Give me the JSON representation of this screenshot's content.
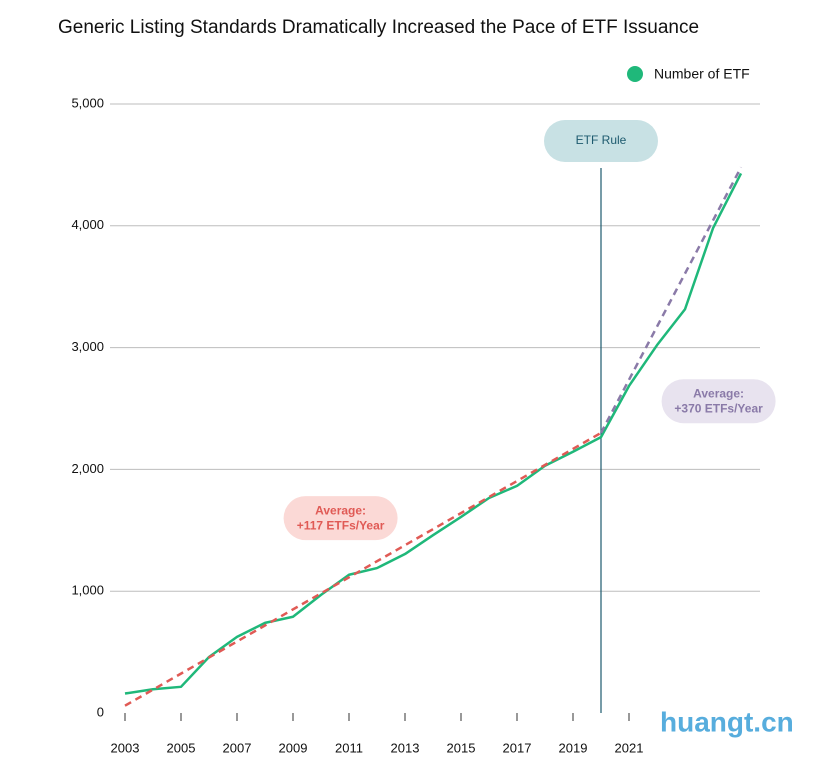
{
  "chart_data": {
    "type": "line",
    "title": "Generic Listing Standards Dramatically Increased the Pace of ETF Issuance",
    "x": [
      2003,
      2004,
      2005,
      2006,
      2007,
      2008,
      2009,
      2010,
      2011,
      2012,
      2013,
      2014,
      2015,
      2016,
      2017,
      2018,
      2019,
      2020,
      2021,
      2022,
      2023,
      2024,
      2025
    ],
    "series": [
      {
        "name": "Number of ETF",
        "color": "#1fb87a",
        "values": [
          160,
          195,
          215,
          460,
          625,
          740,
          790,
          970,
          1135,
          1190,
          1305,
          1460,
          1610,
          1765,
          1865,
          2030,
          2145,
          2265,
          2685,
          3020,
          3315,
          3980,
          4430
        ]
      }
    ],
    "trend_lines": [
      {
        "color": "#e05a55",
        "x": [
          2003,
          2020
        ],
        "values": [
          60,
          2300
        ]
      },
      {
        "color": "#8a7aa8",
        "x": [
          2020,
          2025
        ],
        "values": [
          2300,
          4480
        ]
      }
    ],
    "xlim": [
      2002,
      2026
    ],
    "xticks": [
      2003,
      2005,
      2007,
      2009,
      2011,
      2013,
      2015,
      2017,
      2019,
      2021
    ],
    "ylim": [
      0,
      5000
    ],
    "yticks": [
      0,
      {
        "value": 1000,
        "label": "1,000"
      },
      {
        "value": 2000,
        "label": "2,000"
      },
      {
        "value": 3000,
        "label": "3,000"
      },
      {
        "value": 4000,
        "label": "4,000"
      },
      {
        "value": 5000,
        "label": "5,000"
      }
    ],
    "grid": true,
    "legend": "top-right",
    "rule_line": {
      "x": 2020,
      "label": "ETF Rule"
    },
    "annotations": [
      {
        "lines": [
          "Average:",
          "+117 ETFs/Year"
        ],
        "x": 2010.7,
        "y": 1600,
        "color": "#e05a55",
        "background": "#fbd9d6"
      },
      {
        "lines": [
          "Average:",
          "+370 ETFs/Year"
        ],
        "x": 2024.2,
        "y": 2560,
        "color": "#8a7aa8",
        "background": "#e8e3ef"
      }
    ],
    "watermark": "huangt.cn"
  }
}
